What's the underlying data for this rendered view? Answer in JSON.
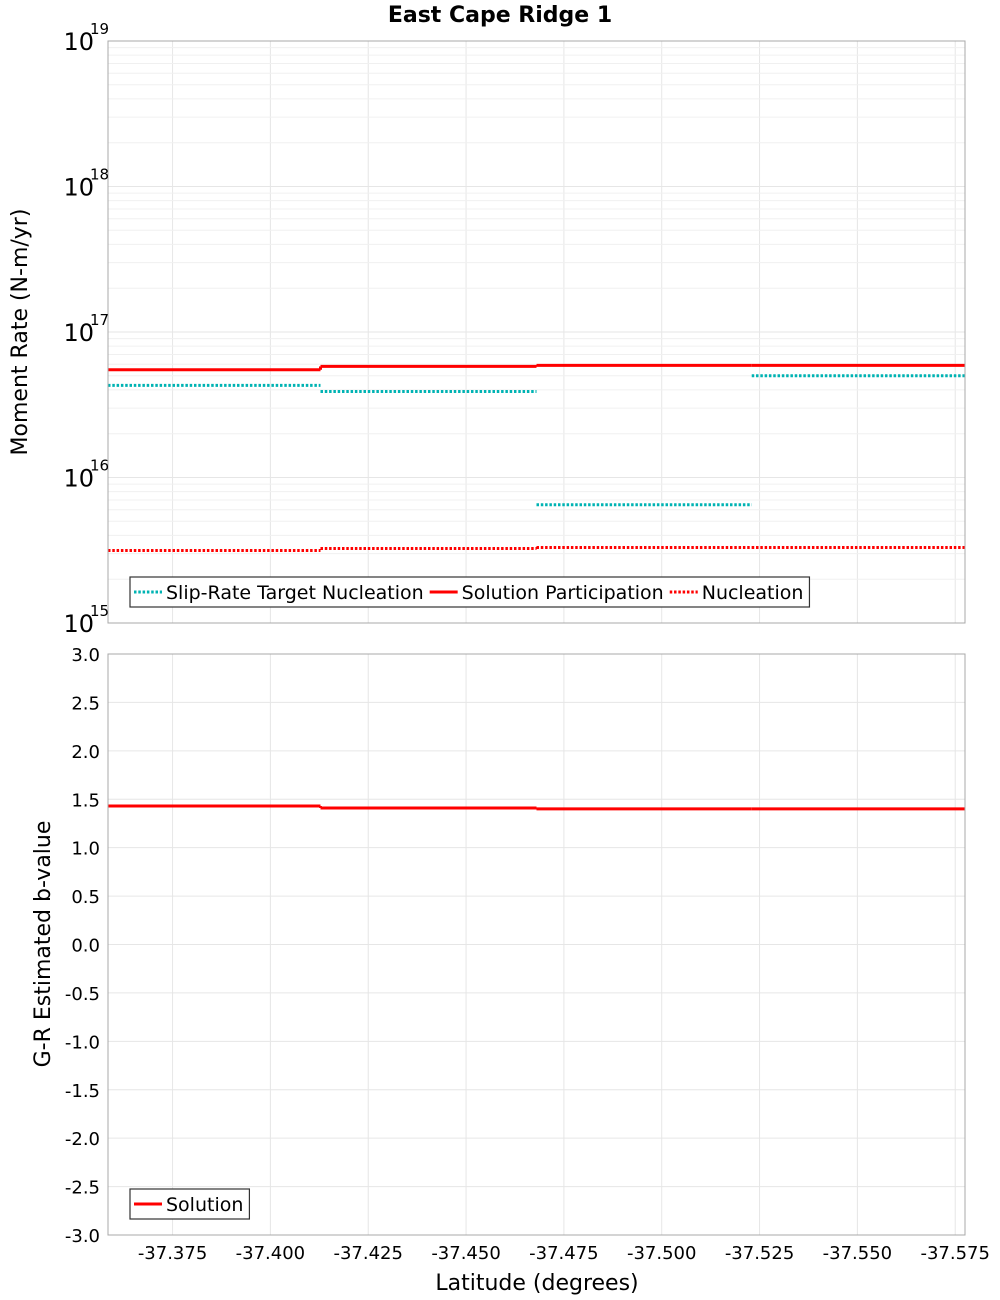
{
  "chart_data": {
    "type": "line",
    "title": "East Cape Ridge 1",
    "xlabel": "Latitude (degrees)",
    "xlim": [
      -37.3585,
      -37.5775
    ],
    "x_ticks": [
      {
        "value": -37.375,
        "label": "-37.375"
      },
      {
        "value": -37.4,
        "label": "-37.400"
      },
      {
        "value": -37.425,
        "label": "-37.425"
      },
      {
        "value": -37.45,
        "label": "-37.450"
      },
      {
        "value": -37.475,
        "label": "-37.475"
      },
      {
        "value": -37.5,
        "label": "-37.500"
      },
      {
        "value": -37.525,
        "label": "-37.525"
      },
      {
        "value": -37.55,
        "label": "-37.550"
      },
      {
        "value": -37.575,
        "label": "-37.575"
      }
    ],
    "segment_edges": [
      -37.3585,
      -37.4128,
      -37.468,
      -37.523,
      -37.5775
    ],
    "panels": [
      {
        "id": "moment",
        "ylabel": "Moment Rate (N-m/yr)",
        "yscale": "log",
        "ylim": [
          1000000000000000.0,
          1e+19
        ],
        "y_ticks": [
          {
            "value": 1000000000000000.0,
            "base": "10",
            "exp": "15"
          },
          {
            "value": 1e+16,
            "base": "10",
            "exp": "16"
          },
          {
            "value": 1e+17,
            "base": "10",
            "exp": "17"
          },
          {
            "value": 1e+18,
            "base": "10",
            "exp": "18"
          },
          {
            "value": 1e+19,
            "base": "10",
            "exp": "19"
          }
        ],
        "legend": {
          "position": "bottom-left"
        },
        "series": [
          {
            "name": "Slip-Rate Target Nucleation",
            "color": "#00b3b3",
            "style": "dotted",
            "values": [
              4.3e+16,
              3.9e+16,
              6500000000000000.0,
              5e+16
            ]
          },
          {
            "name": "Solution Participation",
            "color": "#ff0000",
            "style": "solid",
            "values": [
              5.5e+16,
              5.8e+16,
              5.9e+16,
              5.9e+16
            ]
          },
          {
            "name": "Nucleation",
            "color": "#ff0000",
            "style": "dotted",
            "values": [
              3150000000000000.0,
              3250000000000000.0,
              3300000000000000.0,
              3300000000000000.0
            ]
          }
        ]
      },
      {
        "id": "bvalue",
        "ylabel": "G-R Estimated b-value",
        "yscale": "linear",
        "ylim": [
          -3.0,
          3.0
        ],
        "y_ticks": [
          {
            "value": 3.0,
            "label": "3.0"
          },
          {
            "value": 2.5,
            "label": "2.5"
          },
          {
            "value": 2.0,
            "label": "2.0"
          },
          {
            "value": 1.5,
            "label": "1.5"
          },
          {
            "value": 1.0,
            "label": "1.0"
          },
          {
            "value": 0.5,
            "label": "0.5"
          },
          {
            "value": 0.0,
            "label": "0.0"
          },
          {
            "value": -0.5,
            "label": "-0.5"
          },
          {
            "value": -1.0,
            "label": "-1.0"
          },
          {
            "value": -1.5,
            "label": "-1.5"
          },
          {
            "value": -2.0,
            "label": "-2.0"
          },
          {
            "value": -2.5,
            "label": "-2.5"
          },
          {
            "value": -3.0,
            "label": "-3.0"
          }
        ],
        "legend": {
          "position": "bottom-left"
        },
        "series": [
          {
            "name": "Solution",
            "color": "#ff0000",
            "style": "solid",
            "values": [
              1.43,
              1.41,
              1.4,
              1.4
            ]
          }
        ]
      }
    ]
  }
}
